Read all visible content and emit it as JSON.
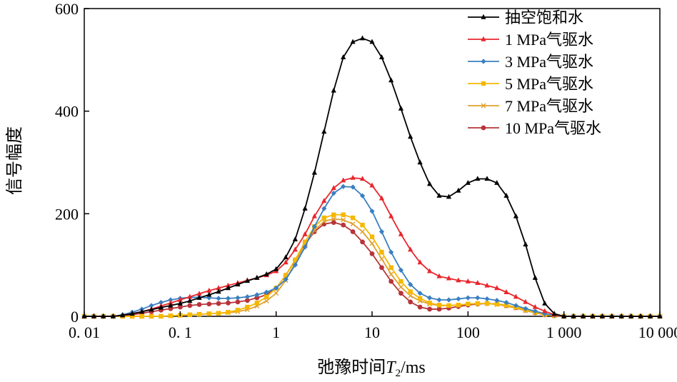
{
  "chart_data": {
    "type": "line",
    "title": "",
    "xlabel_main": "弛豫时间",
    "xlabel_var": "T",
    "xlabel_sub": "2",
    "xlabel_unit": "/ms",
    "ylabel": "信号幅度",
    "x_scale": "log",
    "xlim": [
      0.01,
      10000
    ],
    "ylim": [
      0,
      600
    ],
    "x_ticks": [
      {
        "value": 0.01,
        "label": "0. 01"
      },
      {
        "value": 0.1,
        "label": "0. 1"
      },
      {
        "value": 1,
        "label": "1"
      },
      {
        "value": 10,
        "label": "10"
      },
      {
        "value": 100,
        "label": "100"
      },
      {
        "value": 1000,
        "label": "1 000"
      },
      {
        "value": 10000,
        "label": "10 000"
      }
    ],
    "y_ticks": [
      {
        "value": 0,
        "label": "0"
      },
      {
        "value": 200,
        "label": "200"
      },
      {
        "value": 400,
        "label": "400"
      },
      {
        "value": 600,
        "label": "600"
      }
    ],
    "legend_position": "top-right",
    "series": [
      {
        "name": "抽空饱和水",
        "color": "#000000",
        "marker": "triangle",
        "x": [
          0.01,
          0.0126,
          0.0158,
          0.02,
          0.0251,
          0.0316,
          0.0398,
          0.0501,
          0.0631,
          0.0794,
          0.1,
          0.126,
          0.158,
          0.2,
          0.251,
          0.316,
          0.398,
          0.501,
          0.631,
          0.794,
          1,
          1.26,
          1.58,
          2,
          2.51,
          3.16,
          3.98,
          5.01,
          6.31,
          7.94,
          10,
          12.6,
          15.8,
          20,
          25.1,
          31.6,
          39.8,
          50.1,
          63.1,
          79.4,
          100,
          126,
          158,
          200,
          251,
          316,
          398,
          501,
          631,
          794,
          1000,
          1259,
          1585,
          1995,
          2512,
          3162,
          3981,
          5012,
          6310,
          7943,
          10000
        ],
        "y": [
          0,
          0,
          0,
          0,
          2,
          5,
          9,
          13,
          17,
          21,
          25,
          30,
          36,
          42,
          48,
          55,
          62,
          69,
          75,
          82,
          92,
          115,
          150,
          210,
          280,
          360,
          440,
          505,
          535,
          542,
          535,
          505,
          460,
          405,
          350,
          300,
          258,
          235,
          233,
          245,
          260,
          268,
          268,
          260,
          235,
          195,
          140,
          75,
          25,
          5,
          0,
          0,
          0,
          0,
          0,
          0,
          0,
          0,
          0,
          0,
          0
        ]
      },
      {
        "name": "1 MPa气驱水",
        "color": "#e8262c",
        "marker": "triangle",
        "x": [
          0.01,
          0.0126,
          0.0158,
          0.02,
          0.0251,
          0.0316,
          0.0398,
          0.0501,
          0.0631,
          0.0794,
          0.1,
          0.126,
          0.158,
          0.2,
          0.251,
          0.316,
          0.398,
          0.501,
          0.631,
          0.794,
          1,
          1.26,
          1.58,
          2,
          2.51,
          3.16,
          3.98,
          5.01,
          6.31,
          7.94,
          10,
          12.6,
          15.8,
          20,
          25.1,
          31.6,
          39.8,
          50.1,
          63.1,
          79.4,
          100,
          126,
          158,
          200,
          251,
          316,
          398,
          501,
          631,
          794,
          1000,
          1259,
          1585,
          1995,
          2512,
          3162,
          3981,
          5012,
          6310,
          7943,
          10000
        ],
        "y": [
          0,
          0,
          0,
          0,
          2,
          5,
          9,
          14,
          20,
          26,
          32,
          38,
          44,
          50,
          55,
          60,
          65,
          70,
          75,
          80,
          88,
          105,
          130,
          160,
          195,
          225,
          250,
          265,
          270,
          268,
          255,
          230,
          195,
          160,
          130,
          105,
          88,
          78,
          74,
          70,
          68,
          65,
          60,
          55,
          47,
          38,
          28,
          18,
          10,
          3,
          0,
          0,
          0,
          0,
          0,
          0,
          0,
          0,
          0,
          0,
          0
        ]
      },
      {
        "name": "3 MPa气驱水",
        "color": "#3a7fc1",
        "marker": "diamond",
        "x": [
          0.01,
          0.0126,
          0.0158,
          0.02,
          0.0251,
          0.0316,
          0.0398,
          0.0501,
          0.0631,
          0.0794,
          0.1,
          0.126,
          0.158,
          0.2,
          0.251,
          0.316,
          0.398,
          0.501,
          0.631,
          0.794,
          1,
          1.26,
          1.58,
          2,
          2.51,
          3.16,
          3.98,
          5.01,
          6.31,
          7.94,
          10,
          12.6,
          15.8,
          20,
          25.1,
          31.6,
          39.8,
          50.1,
          63.1,
          79.4,
          100,
          126,
          158,
          200,
          251,
          316,
          398,
          501,
          631,
          794,
          1000,
          1259,
          1585,
          1995,
          2512,
          3162,
          3981,
          5012,
          6310,
          7943,
          10000
        ],
        "y": [
          0,
          0,
          0,
          0,
          3,
          8,
          14,
          21,
          27,
          32,
          35,
          37,
          37,
          36,
          35,
          35,
          36,
          38,
          42,
          47,
          55,
          72,
          100,
          135,
          175,
          210,
          240,
          253,
          252,
          235,
          205,
          165,
          125,
          90,
          62,
          45,
          36,
          32,
          32,
          34,
          36,
          36,
          34,
          31,
          27,
          21,
          15,
          10,
          5,
          2,
          0,
          0,
          0,
          0,
          0,
          0,
          0,
          0,
          0,
          0,
          0
        ]
      },
      {
        "name": "5 MPa气驱水",
        "color": "#f5b800",
        "marker": "square",
        "x": [
          0.01,
          0.0126,
          0.0158,
          0.02,
          0.0251,
          0.0316,
          0.0398,
          0.0501,
          0.0631,
          0.0794,
          0.1,
          0.126,
          0.158,
          0.2,
          0.251,
          0.316,
          0.398,
          0.501,
          0.631,
          0.794,
          1,
          1.26,
          1.58,
          2,
          2.51,
          3.16,
          3.98,
          5.01,
          6.31,
          7.94,
          10,
          12.6,
          15.8,
          20,
          25.1,
          31.6,
          39.8,
          50.1,
          63.1,
          79.4,
          100,
          126,
          158,
          200,
          251,
          316,
          398,
          501,
          631,
          794,
          1000,
          1259,
          1585,
          1995,
          2512,
          3162,
          3981,
          5012,
          6310,
          7943,
          10000
        ],
        "y": [
          0,
          0,
          0,
          0,
          0,
          0,
          0,
          0,
          0,
          1,
          2,
          3,
          4,
          5,
          6,
          8,
          12,
          18,
          26,
          38,
          55,
          80,
          110,
          145,
          175,
          192,
          198,
          198,
          192,
          178,
          155,
          125,
          95,
          68,
          48,
          35,
          26,
          22,
          21,
          22,
          24,
          25,
          25,
          24,
          22,
          18,
          13,
          8,
          4,
          1,
          0,
          0,
          0,
          0,
          0,
          0,
          0,
          0,
          0,
          0,
          0
        ]
      },
      {
        "name": "7 MPa气驱水",
        "color": "#e0a030",
        "marker": "x",
        "x": [
          0.01,
          0.0126,
          0.0158,
          0.02,
          0.0251,
          0.0316,
          0.0398,
          0.0501,
          0.0631,
          0.0794,
          0.1,
          0.126,
          0.158,
          0.2,
          0.251,
          0.316,
          0.398,
          0.501,
          0.631,
          0.794,
          1,
          1.26,
          1.58,
          2,
          2.51,
          3.16,
          3.98,
          5.01,
          6.31,
          7.94,
          10,
          12.6,
          15.8,
          20,
          25.1,
          31.6,
          39.8,
          50.1,
          63.1,
          79.4,
          100,
          126,
          158,
          200,
          251,
          316,
          398,
          501,
          631,
          794,
          1000,
          1259,
          1585,
          1995,
          2512,
          3162,
          3981,
          5012,
          6310,
          7943,
          10000
        ],
        "y": [
          0,
          0,
          0,
          0,
          0,
          0,
          0,
          0,
          0,
          1,
          2,
          3,
          4,
          5,
          6,
          7,
          9,
          13,
          20,
          30,
          45,
          70,
          105,
          140,
          168,
          185,
          190,
          188,
          180,
          165,
          142,
          112,
          82,
          57,
          40,
          30,
          24,
          21,
          21,
          22,
          24,
          25,
          25,
          23,
          20,
          16,
          11,
          7,
          3,
          1,
          0,
          0,
          0,
          0,
          0,
          0,
          0,
          0,
          0,
          0,
          0
        ]
      },
      {
        "name": "10 MPa气驱水",
        "color": "#b8343a",
        "marker": "circle",
        "x": [
          0.01,
          0.0126,
          0.0158,
          0.02,
          0.0251,
          0.0316,
          0.0398,
          0.0501,
          0.0631,
          0.0794,
          0.1,
          0.126,
          0.158,
          0.2,
          0.251,
          0.316,
          0.398,
          0.501,
          0.631,
          0.794,
          1,
          1.26,
          1.58,
          2,
          2.51,
          3.16,
          3.98,
          5.01,
          6.31,
          7.94,
          10,
          12.6,
          15.8,
          20,
          25.1,
          31.6,
          39.8,
          50.1,
          63.1,
          79.4,
          100,
          126,
          158,
          200,
          251,
          316,
          398,
          501,
          631,
          794,
          1000,
          1259,
          1585,
          1995,
          2512,
          3162,
          3981,
          5012,
          6310,
          7943,
          10000
        ],
        "y": [
          0,
          0,
          0,
          0,
          1,
          3,
          6,
          9,
          12,
          15,
          18,
          21,
          23,
          24,
          25,
          26,
          28,
          31,
          36,
          42,
          55,
          80,
          110,
          140,
          165,
          180,
          183,
          178,
          165,
          145,
          122,
          95,
          68,
          45,
          28,
          18,
          14,
          14,
          16,
          19,
          22,
          24,
          25,
          24,
          21,
          17,
          12,
          7,
          3,
          1,
          0,
          0,
          0,
          0,
          0,
          0,
          0,
          0,
          0,
          0,
          0
        ]
      }
    ]
  }
}
